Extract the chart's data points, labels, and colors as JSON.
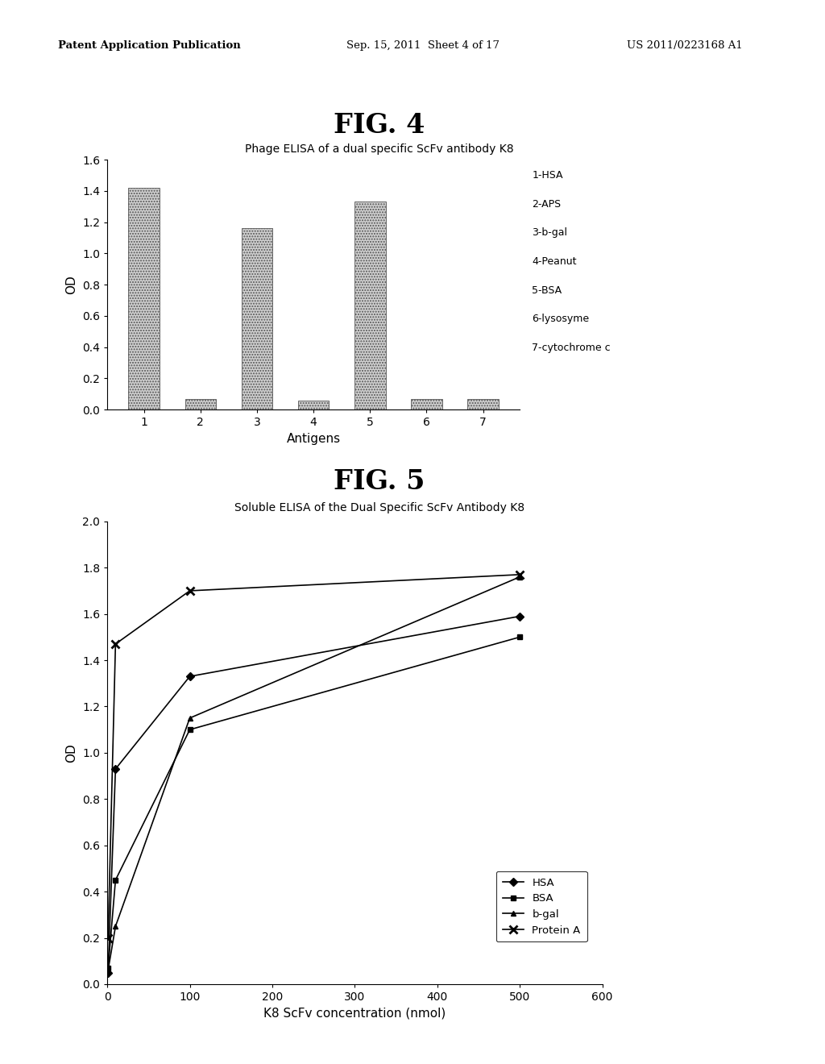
{
  "fig4": {
    "title": "FIG. 4",
    "subtitle": "Phage ELISA of a dual specific ScFv antibody K8",
    "bar_values": [
      1.42,
      0.07,
      1.16,
      0.06,
      1.33,
      0.07,
      0.07
    ],
    "bar_positions": [
      1,
      2,
      3,
      4,
      5,
      6,
      7
    ],
    "xlabel": "Antigens",
    "ylabel": "OD",
    "ylim": [
      0,
      1.6
    ],
    "yticks": [
      0,
      0.2,
      0.4,
      0.6,
      0.8,
      1.0,
      1.2,
      1.4,
      1.6
    ],
    "xticks": [
      1,
      2,
      3,
      4,
      5,
      6,
      7
    ],
    "legend_labels": [
      "1-HSA",
      "2-APS",
      "3-b-gal",
      "4-Peanut",
      "5-BSA",
      "6-lysosyme",
      "7-cytochrome c"
    ]
  },
  "fig5": {
    "title": "FIG. 5",
    "subtitle": "Soluble ELISA of the Dual Specific ScFv Antibody K8",
    "x": [
      1,
      10,
      100,
      500
    ],
    "HSA": [
      0.05,
      0.93,
      1.33,
      1.59
    ],
    "BSA": [
      0.07,
      0.45,
      1.1,
      1.5
    ],
    "b_gal": [
      0.06,
      0.25,
      1.15,
      1.76
    ],
    "ProteinA": [
      0.2,
      1.47,
      1.7,
      1.77
    ],
    "xlabel": "K8 ScFv concentration (nmol)",
    "ylabel": "OD",
    "ylim": [
      0,
      2.0
    ],
    "yticks": [
      0,
      0.2,
      0.4,
      0.6,
      0.8,
      1.0,
      1.2,
      1.4,
      1.6,
      1.8,
      2.0
    ],
    "xlim": [
      0,
      600
    ],
    "xticks": [
      0,
      100,
      200,
      300,
      400,
      500,
      600
    ]
  },
  "header_left": "Patent Application Publication",
  "header_mid": "Sep. 15, 2011  Sheet 4 of 17",
  "header_right": "US 2011/0223168 A1",
  "background_color": "#ffffff",
  "text_color": "#000000"
}
